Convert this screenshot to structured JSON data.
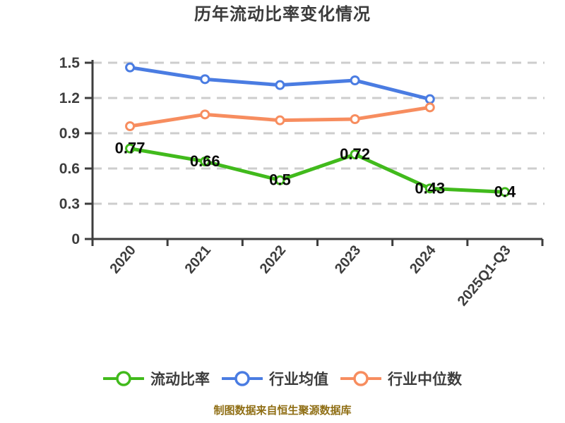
{
  "colors": {
    "background": "#ffffff",
    "title_text": "#3b3b3b",
    "axis": "#3d3d3d",
    "tick_label": "#3d3d3d",
    "grid": "#cdcdcd",
    "data_label": "#0a0a0a",
    "legend_text": "#3d3d3d",
    "source_note": "#8f6e14"
  },
  "chart_data": {
    "type": "line",
    "title": "历年流动比率变化情况",
    "categories": [
      "2020",
      "2021",
      "2022",
      "2023",
      "2024",
      "2025Q1-Q3"
    ],
    "series": [
      {
        "key": "current-ratio",
        "name": "流动比率",
        "color": "#41ba1c",
        "values": [
          0.77,
          0.66,
          0.5,
          0.72,
          0.43,
          0.4
        ],
        "show_labels": true
      },
      {
        "key": "industry-average",
        "name": "行业均值",
        "color": "#4a7ce2",
        "values": [
          1.46,
          1.36,
          1.31,
          1.35,
          1.19,
          null
        ],
        "show_labels": false
      },
      {
        "key": "industry-median",
        "name": "行业中位数",
        "color": "#f78d5f",
        "values": [
          0.96,
          1.06,
          1.01,
          1.02,
          1.12,
          null
        ],
        "show_labels": false
      }
    ],
    "ylim": [
      0,
      1.5
    ],
    "yticks": [
      0,
      0.3,
      0.6,
      0.9,
      1.2,
      1.5
    ],
    "grid": "horizontal-dashed",
    "marker": "circle-white-fill",
    "x_label_rotation_deg": -50,
    "legend_position": "bottom",
    "source_note": "制图数据来自恒生聚源数据库"
  }
}
